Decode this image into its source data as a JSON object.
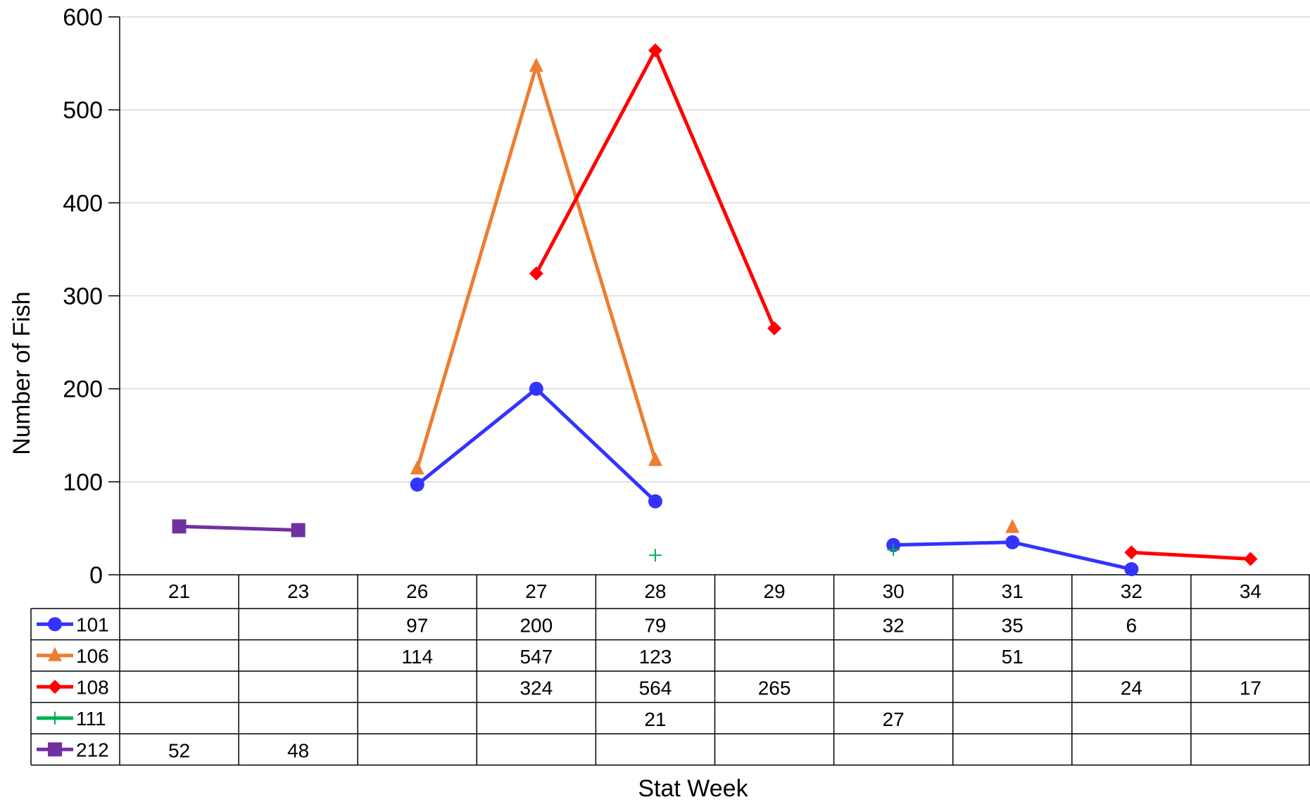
{
  "chart_data": {
    "type": "line",
    "title": "",
    "xlabel": "Stat Week",
    "ylabel": "Number of Fish",
    "ylim": [
      0,
      600
    ],
    "yticks": [
      0,
      100,
      200,
      300,
      400,
      500,
      600
    ],
    "grid": true,
    "legend": "data-table-left",
    "categories": [
      "21",
      "23",
      "26",
      "27",
      "28",
      "29",
      "30",
      "31",
      "32",
      "34"
    ],
    "series": [
      {
        "name": "101",
        "color": "#3333ff",
        "marker": "circle",
        "values": [
          null,
          null,
          97,
          200,
          79,
          null,
          32,
          35,
          6,
          null
        ]
      },
      {
        "name": "106",
        "color": "#ed7d31",
        "marker": "triangle",
        "values": [
          null,
          null,
          114,
          547,
          123,
          null,
          null,
          51,
          null,
          null
        ]
      },
      {
        "name": "108",
        "color": "#ff0000",
        "marker": "diamond",
        "values": [
          null,
          null,
          null,
          324,
          564,
          265,
          null,
          null,
          24,
          17
        ]
      },
      {
        "name": "111",
        "color": "#00b050",
        "marker": "plus",
        "values": [
          null,
          null,
          null,
          null,
          21,
          null,
          27,
          null,
          null,
          null
        ]
      },
      {
        "name": "212",
        "color": "#7030a0",
        "marker": "square",
        "values": [
          52,
          48,
          null,
          null,
          null,
          null,
          null,
          null,
          null,
          null
        ]
      }
    ]
  }
}
